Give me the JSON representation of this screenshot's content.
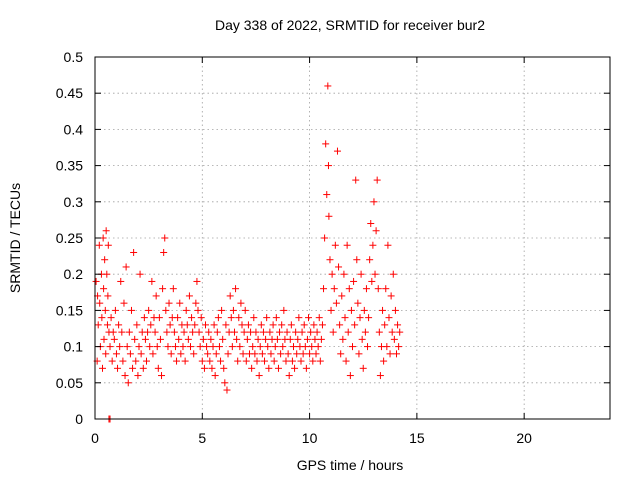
{
  "chart_data": {
    "type": "scatter",
    "title": "Day 338 of 2022, SRMTID for receiver bur2",
    "xlabel": "GPS time / hours",
    "ylabel": "SRMTID / TECUs",
    "xlim": [
      0,
      24
    ],
    "ylim": [
      0,
      0.5
    ],
    "xticks": [
      "0",
      "5",
      "10",
      "15",
      "20"
    ],
    "xtick_values": [
      0,
      5,
      10,
      15,
      20
    ],
    "yticks": [
      "0",
      "0.05",
      "0.1",
      "0.15",
      "0.2",
      "0.25",
      "0.3",
      "0.35",
      "0.4",
      "0.45",
      "0.5"
    ],
    "ytick_values": [
      0,
      0.05,
      0.1,
      0.15,
      0.2,
      0.25,
      0.3,
      0.35,
      0.4,
      0.45,
      0.5
    ],
    "grid": true,
    "marker_color": "#ff0000",
    "series": [
      {
        "marker": "plus",
        "points": [
          [
            0.05,
            0.19
          ],
          [
            0.1,
            0.08
          ],
          [
            0.12,
            0.17
          ],
          [
            0.15,
            0.13
          ],
          [
            0.2,
            0.24
          ],
          [
            0.22,
            0.16
          ],
          [
            0.25,
            0.1
          ],
          [
            0.3,
            0.2
          ],
          [
            0.32,
            0.14
          ],
          [
            0.35,
            0.07
          ],
          [
            0.38,
            0.25
          ],
          [
            0.4,
            0.18
          ],
          [
            0.42,
            0.11
          ],
          [
            0.45,
            0.22
          ],
          [
            0.48,
            0.15
          ],
          [
            0.5,
            0.09
          ],
          [
            0.52,
            0.26
          ],
          [
            0.55,
            0.2
          ],
          [
            0.58,
            0.13
          ],
          [
            0.6,
            0.17
          ],
          [
            0.62,
            0.24
          ],
          [
            0.65,
            0.12
          ],
          [
            0.7,
            0.1
          ],
          [
            0.75,
            0.14
          ],
          [
            0.8,
            0.08
          ],
          [
            0.85,
            0.12
          ],
          [
            0.9,
            0.11
          ],
          [
            0.95,
            0.15
          ],
          [
            1.0,
            0.09
          ],
          [
            1.05,
            0.07
          ],
          [
            1.1,
            0.13
          ],
          [
            1.15,
            0.1
          ],
          [
            1.2,
            0.19
          ],
          [
            1.25,
            0.12
          ],
          [
            1.3,
            0.08
          ],
          [
            1.35,
            0.16
          ],
          [
            1.4,
            0.06
          ],
          [
            1.45,
            0.21
          ],
          [
            1.5,
            0.1
          ],
          [
            1.55,
            0.05
          ],
          [
            1.6,
            0.12
          ],
          [
            1.65,
            0.09
          ],
          [
            1.7,
            0.15
          ],
          [
            1.75,
            0.07
          ],
          [
            1.8,
            0.23
          ],
          [
            1.85,
            0.11
          ],
          [
            1.9,
            0.08
          ],
          [
            1.95,
            0.13
          ],
          [
            2.0,
            0.06
          ],
          [
            2.05,
            0.1
          ],
          [
            2.1,
            0.2
          ],
          [
            2.15,
            0.09
          ],
          [
            2.2,
            0.12
          ],
          [
            2.25,
            0.07
          ],
          [
            2.3,
            0.14
          ],
          [
            2.35,
            0.11
          ],
          [
            2.4,
            0.08
          ],
          [
            2.45,
            0.12
          ],
          [
            2.5,
            0.15
          ],
          [
            2.55,
            0.1
          ],
          [
            2.6,
            0.13
          ],
          [
            2.65,
            0.19
          ],
          [
            2.7,
            0.09
          ],
          [
            2.75,
            0.14
          ],
          [
            2.8,
            0.12
          ],
          [
            2.85,
            0.17
          ],
          [
            2.9,
            0.1
          ],
          [
            2.95,
            0.07
          ],
          [
            3.0,
            0.14
          ],
          [
            3.05,
            0.11
          ],
          [
            3.1,
            0.06
          ],
          [
            3.15,
            0.18
          ],
          [
            3.2,
            0.23
          ],
          [
            3.25,
            0.25
          ],
          [
            3.3,
            0.15
          ],
          [
            3.35,
            0.12
          ],
          [
            3.4,
            0.1
          ],
          [
            3.45,
            0.16
          ],
          [
            3.5,
            0.13
          ],
          [
            3.55,
            0.09
          ],
          [
            3.6,
            0.14
          ],
          [
            3.65,
            0.18
          ],
          [
            3.7,
            0.12
          ],
          [
            3.75,
            0.1
          ],
          [
            3.8,
            0.08
          ],
          [
            3.85,
            0.14
          ],
          [
            3.9,
            0.11
          ],
          [
            3.95,
            0.16
          ],
          [
            4.0,
            0.09
          ],
          [
            4.05,
            0.13
          ],
          [
            4.1,
            0.1
          ],
          [
            4.15,
            0.12
          ],
          [
            4.2,
            0.08
          ],
          [
            4.25,
            0.15
          ],
          [
            4.3,
            0.13
          ],
          [
            4.35,
            0.11
          ],
          [
            4.4,
            0.17
          ],
          [
            4.45,
            0.1
          ],
          [
            4.5,
            0.14
          ],
          [
            4.55,
            0.12
          ],
          [
            4.6,
            0.09
          ],
          [
            4.65,
            0.13
          ],
          [
            4.7,
            0.16
          ],
          [
            4.75,
            0.19
          ],
          [
            4.8,
            0.15
          ],
          [
            4.85,
            0.12
          ],
          [
            4.9,
            0.1
          ],
          [
            4.95,
            0.14
          ],
          [
            5.0,
            0.08
          ],
          [
            5.05,
            0.11
          ],
          [
            5.1,
            0.07
          ],
          [
            5.15,
            0.13
          ],
          [
            5.2,
            0.1
          ],
          [
            5.25,
            0.09
          ],
          [
            5.3,
            0.12
          ],
          [
            5.35,
            0.08
          ],
          [
            5.4,
            0.11
          ],
          [
            5.45,
            0.07
          ],
          [
            5.5,
            0.1
          ],
          [
            5.55,
            0.13
          ],
          [
            5.6,
            0.06
          ],
          [
            5.65,
            0.09
          ],
          [
            5.7,
            0.12
          ],
          [
            5.75,
            0.14
          ],
          [
            5.8,
            0.1
          ],
          [
            5.85,
            0.08
          ],
          [
            5.9,
            0.15
          ],
          [
            5.95,
            0.11
          ],
          [
            6.0,
            0.07
          ],
          [
            6.05,
            0.05
          ],
          [
            6.1,
            0.13
          ],
          [
            6.15,
            0.04
          ],
          [
            6.2,
            0.09
          ],
          [
            6.25,
            0.12
          ],
          [
            6.3,
            0.17
          ],
          [
            6.35,
            0.14
          ],
          [
            6.4,
            0.1
          ],
          [
            6.45,
            0.15
          ],
          [
            6.5,
            0.12
          ],
          [
            6.55,
            0.18
          ],
          [
            6.6,
            0.11
          ],
          [
            6.65,
            0.08
          ],
          [
            6.7,
            0.14
          ],
          [
            6.75,
            0.1
          ],
          [
            6.8,
            0.16
          ],
          [
            6.85,
            0.13
          ],
          [
            6.9,
            0.09
          ],
          [
            6.95,
            0.12
          ],
          [
            7.0,
            0.15
          ],
          [
            7.05,
            0.08
          ],
          [
            7.1,
            0.11
          ],
          [
            7.15,
            0.13
          ],
          [
            7.2,
            0.09
          ],
          [
            7.25,
            0.12
          ],
          [
            7.3,
            0.07
          ],
          [
            7.35,
            0.1
          ],
          [
            7.4,
            0.14
          ],
          [
            7.45,
            0.09
          ],
          [
            7.5,
            0.12
          ],
          [
            7.55,
            0.08
          ],
          [
            7.6,
            0.11
          ],
          [
            7.65,
            0.06
          ],
          [
            7.7,
            0.1
          ],
          [
            7.75,
            0.13
          ],
          [
            7.8,
            0.09
          ],
          [
            7.85,
            0.12
          ],
          [
            7.9,
            0.08
          ],
          [
            7.95,
            0.11
          ],
          [
            8.0,
            0.14
          ],
          [
            8.05,
            0.1
          ],
          [
            8.1,
            0.07
          ],
          [
            8.15,
            0.12
          ],
          [
            8.2,
            0.09
          ],
          [
            8.25,
            0.11
          ],
          [
            8.3,
            0.13
          ],
          [
            8.35,
            0.08
          ],
          [
            8.4,
            0.1
          ],
          [
            8.45,
            0.14
          ],
          [
            8.5,
            0.11
          ],
          [
            8.55,
            0.07
          ],
          [
            8.6,
            0.12
          ],
          [
            8.65,
            0.09
          ],
          [
            8.7,
            0.13
          ],
          [
            8.75,
            0.1
          ],
          [
            8.8,
            0.15
          ],
          [
            8.85,
            0.11
          ],
          [
            8.9,
            0.08
          ],
          [
            8.95,
            0.12
          ],
          [
            9.0,
            0.09
          ],
          [
            9.05,
            0.06
          ],
          [
            9.1,
            0.11
          ],
          [
            9.15,
            0.13
          ],
          [
            9.2,
            0.08
          ],
          [
            9.25,
            0.1
          ],
          [
            9.3,
            0.07
          ],
          [
            9.35,
            0.12
          ],
          [
            9.4,
            0.09
          ],
          [
            9.45,
            0.11
          ],
          [
            9.5,
            0.14
          ],
          [
            9.55,
            0.1
          ],
          [
            9.6,
            0.08
          ],
          [
            9.65,
            0.12
          ],
          [
            9.7,
            0.09
          ],
          [
            9.75,
            0.13
          ],
          [
            9.8,
            0.1
          ],
          [
            9.85,
            0.07
          ],
          [
            9.9,
            0.11
          ],
          [
            9.95,
            0.14
          ],
          [
            10.0,
            0.09
          ],
          [
            10.05,
            0.12
          ],
          [
            10.1,
            0.1
          ],
          [
            10.15,
            0.08
          ],
          [
            10.2,
            0.13
          ],
          [
            10.25,
            0.11
          ],
          [
            10.3,
            0.09
          ],
          [
            10.35,
            0.12
          ],
          [
            10.4,
            0.1
          ],
          [
            10.45,
            0.14
          ],
          [
            10.5,
            0.08
          ],
          [
            10.55,
            0.11
          ],
          [
            10.6,
            0.13
          ],
          [
            10.65,
            0.18
          ],
          [
            10.7,
            0.25
          ],
          [
            10.75,
            0.38
          ],
          [
            10.8,
            0.31
          ],
          [
            10.85,
            0.46
          ],
          [
            10.88,
            0.35
          ],
          [
            10.9,
            0.28
          ],
          [
            10.95,
            0.22
          ],
          [
            11.0,
            0.15
          ],
          [
            11.05,
            0.2
          ],
          [
            11.1,
            0.12
          ],
          [
            11.15,
            0.18
          ],
          [
            11.2,
            0.24
          ],
          [
            11.25,
            0.16
          ],
          [
            11.3,
            0.37
          ],
          [
            11.35,
            0.21
          ],
          [
            11.4,
            0.13
          ],
          [
            11.45,
            0.09
          ],
          [
            11.5,
            0.17
          ],
          [
            11.55,
            0.11
          ],
          [
            11.6,
            0.2
          ],
          [
            11.65,
            0.14
          ],
          [
            11.7,
            0.08
          ],
          [
            11.75,
            0.24
          ],
          [
            11.8,
            0.12
          ],
          [
            11.85,
            0.18
          ],
          [
            11.9,
            0.06
          ],
          [
            11.95,
            0.15
          ],
          [
            12.0,
            0.1
          ],
          [
            12.05,
            0.19
          ],
          [
            12.1,
            0.13
          ],
          [
            12.15,
            0.33
          ],
          [
            12.2,
            0.22
          ],
          [
            12.25,
            0.16
          ],
          [
            12.3,
            0.09
          ],
          [
            12.35,
            0.14
          ],
          [
            12.4,
            0.2
          ],
          [
            12.45,
            0.11
          ],
          [
            12.5,
            0.07
          ],
          [
            12.55,
            0.15
          ],
          [
            12.6,
            0.12
          ],
          [
            12.65,
            0.18
          ],
          [
            12.7,
            0.1
          ],
          [
            12.75,
            0.14
          ],
          [
            12.8,
            0.22
          ],
          [
            12.85,
            0.27
          ],
          [
            12.9,
            0.19
          ],
          [
            12.95,
            0.24
          ],
          [
            13.0,
            0.3
          ],
          [
            13.05,
            0.2
          ],
          [
            13.1,
            0.26
          ],
          [
            13.15,
            0.33
          ],
          [
            13.2,
            0.18
          ],
          [
            13.25,
            0.12
          ],
          [
            13.3,
            0.06
          ],
          [
            13.35,
            0.1
          ],
          [
            13.4,
            0.15
          ],
          [
            13.45,
            0.08
          ],
          [
            13.5,
            0.13
          ],
          [
            13.55,
            0.18
          ],
          [
            13.6,
            0.1
          ],
          [
            13.65,
            0.24
          ],
          [
            13.7,
            0.14
          ],
          [
            13.75,
            0.09
          ],
          [
            13.8,
            0.17
          ],
          [
            13.85,
            0.12
          ],
          [
            13.9,
            0.2
          ],
          [
            13.95,
            0.11
          ],
          [
            14.0,
            0.15
          ],
          [
            14.05,
            0.09
          ],
          [
            14.1,
            0.13
          ],
          [
            14.15,
            0.1
          ],
          [
            14.2,
            0.12
          ],
          [
            0.65,
            0.0
          ],
          [
            0.7,
            0.0
          ]
        ]
      }
    ]
  }
}
